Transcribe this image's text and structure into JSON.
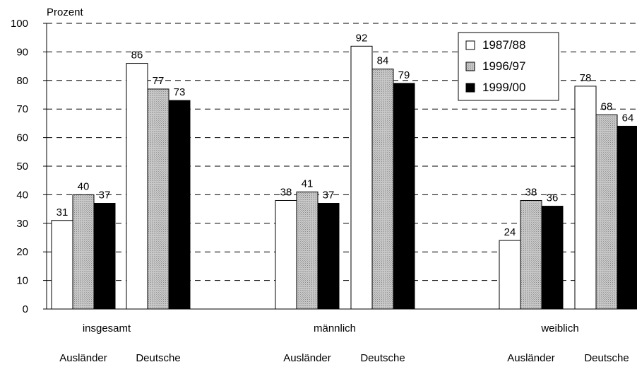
{
  "chart_data": {
    "type": "bar",
    "ylabel": "Prozent",
    "ylim": [
      0,
      100
    ],
    "yticks": [
      0,
      10,
      20,
      30,
      40,
      50,
      60,
      70,
      80,
      90,
      100
    ],
    "grid": true,
    "legend_position": "top-right",
    "groups": [
      {
        "label": "insgesamt",
        "subgroups": [
          "Ausländer",
          "Deutsche"
        ]
      },
      {
        "label": "männlich",
        "subgroups": [
          "Ausländer",
          "Deutsche"
        ]
      },
      {
        "label": "weiblich",
        "subgroups": [
          "Ausländer",
          "Deutsche"
        ]
      }
    ],
    "categories": [
      "insgesamt Ausländer",
      "insgesamt Deutsche",
      "männlich Ausländer",
      "männlich Deutsche",
      "weiblich Ausländer",
      "weiblich Deutsche"
    ],
    "series": [
      {
        "name": "1987/88",
        "color": "#ffffff",
        "values": [
          31,
          86,
          38,
          92,
          24,
          78
        ]
      },
      {
        "name": "1996/97",
        "color": "#c0c0c0",
        "values": [
          40,
          77,
          41,
          84,
          38,
          68
        ]
      },
      {
        "name": "1999/00",
        "color": "#000000",
        "values": [
          37,
          73,
          37,
          79,
          36,
          64
        ]
      }
    ],
    "data_label_values": [
      [
        "31",
        "86",
        "38",
        "92",
        "24",
        "78"
      ],
      [
        "40",
        "77",
        "41",
        "84",
        "38",
        "68"
      ],
      [
        "37",
        "73",
        "37",
        "79",
        "36",
        "64"
      ]
    ]
  }
}
